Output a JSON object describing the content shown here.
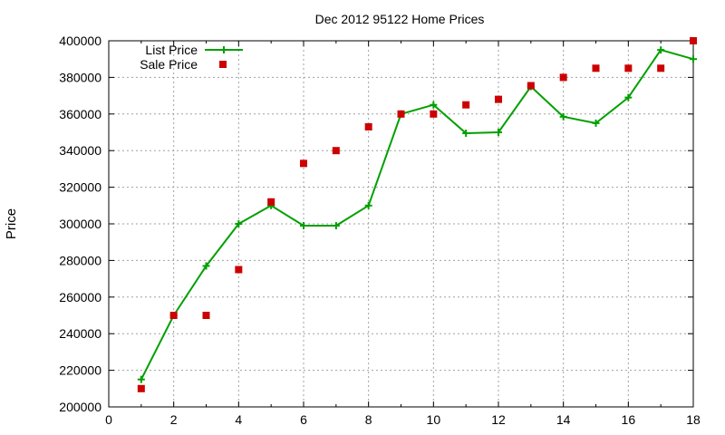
{
  "chart_data": {
    "type": "line",
    "title": "Dec 2012 95122 Home Prices",
    "xlabel": "",
    "ylabel": "Price",
    "xlim": [
      0,
      18
    ],
    "ylim": [
      200000,
      400000
    ],
    "xticks": [
      0,
      2,
      4,
      6,
      8,
      10,
      12,
      14,
      16,
      18
    ],
    "yticks": [
      200000,
      220000,
      240000,
      260000,
      280000,
      300000,
      320000,
      340000,
      360000,
      380000,
      400000
    ],
    "grid": true,
    "legend_position": "top-left",
    "series": [
      {
        "name": "List Price",
        "style": "linespoints",
        "color": "#00a000",
        "x": [
          1,
          2,
          3,
          4,
          5,
          6,
          7,
          8,
          9,
          10,
          11,
          12,
          13,
          14,
          15,
          16,
          17,
          18
        ],
        "y": [
          215000,
          250000,
          277000,
          300000,
          310000,
          299000,
          299000,
          310000,
          360000,
          365000,
          349500,
          350000,
          375000,
          358500,
          355000,
          369000,
          395000,
          390000
        ]
      },
      {
        "name": "Sale Price",
        "style": "points",
        "color": "#cc0000",
        "x": [
          1,
          2,
          3,
          4,
          5,
          6,
          7,
          8,
          9,
          10,
          11,
          12,
          13,
          14,
          15,
          16,
          17,
          18
        ],
        "y": [
          210000,
          250000,
          250000,
          275000,
          312000,
          333000,
          340000,
          353000,
          360000,
          360000,
          365000,
          368000,
          375500,
          380000,
          385000,
          385000,
          385000,
          400000
        ]
      }
    ]
  }
}
